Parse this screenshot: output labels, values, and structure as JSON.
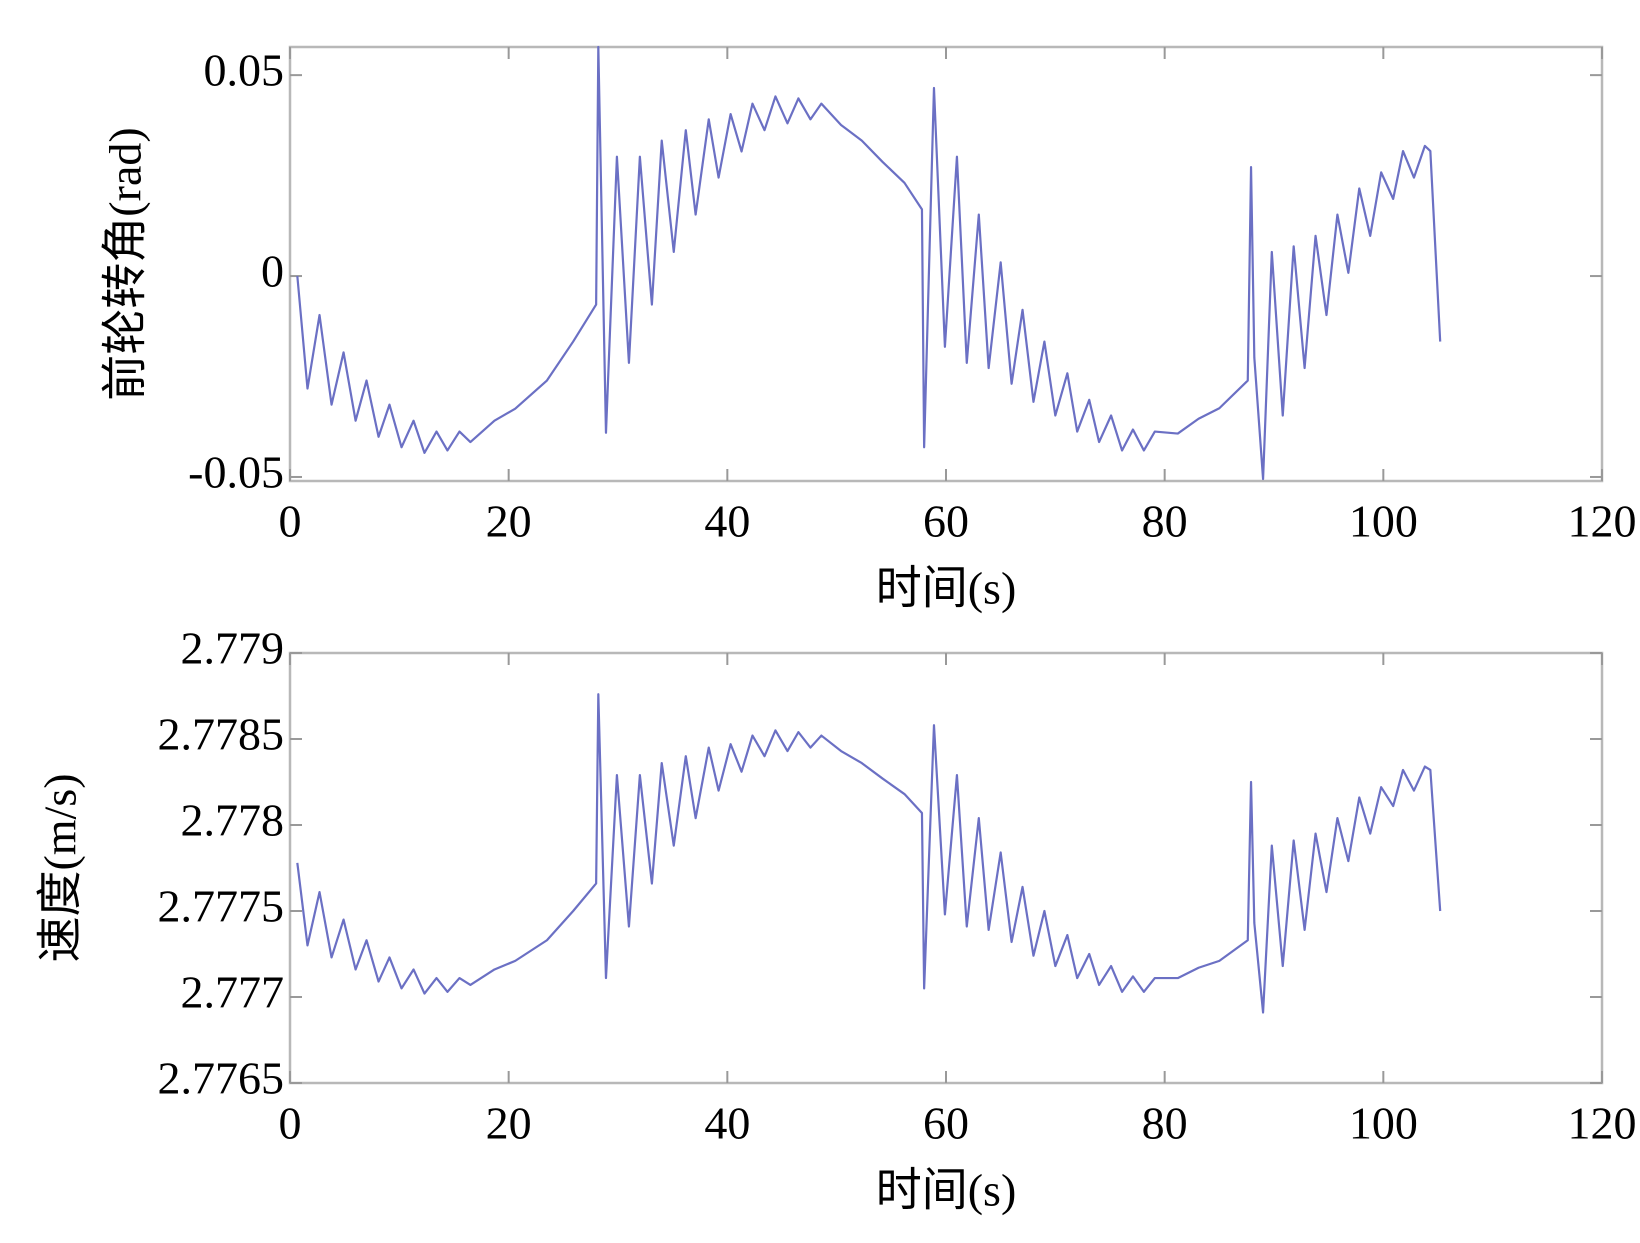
{
  "chart_data": [
    {
      "type": "line",
      "xlabel": "时间(s)",
      "ylabel": "前轮转角(rad)",
      "xlim": [
        0,
        120
      ],
      "xticks": [
        0,
        20,
        40,
        60,
        80,
        100,
        120
      ],
      "ylim": [
        -0.051,
        0.057
      ],
      "yticks": [
        -0.05,
        0,
        0.05
      ],
      "x": [
        0.67,
        1.6,
        2.7,
        3.8,
        4.9,
        6.0,
        7.0,
        8.1,
        9.1,
        10.2,
        11.3,
        12.3,
        13.4,
        14.4,
        15.5,
        16.5,
        18.7,
        20.6,
        23.5,
        25.9,
        28.0,
        28.2,
        28.9,
        29.9,
        31.0,
        32.0,
        33.1,
        34.0,
        35.1,
        36.2,
        37.1,
        38.3,
        39.2,
        40.3,
        41.3,
        42.3,
        43.4,
        44.4,
        45.5,
        46.5,
        47.6,
        48.6,
        50.4,
        52.3,
        54.2,
        56.2,
        57.8,
        58.0,
        58.9,
        59.9,
        61.0,
        61.9,
        63.0,
        63.9,
        65.0,
        66.0,
        67.0,
        68.0,
        69.0,
        70.0,
        71.1,
        72.0,
        73.1,
        74.0,
        75.1,
        76.1,
        77.1,
        78.1,
        79.1,
        81.2,
        83.1,
        85.0,
        87.6,
        87.9,
        88.2,
        89.0,
        89.8,
        90.8,
        91.8,
        92.8,
        93.8,
        94.8,
        95.8,
        96.8,
        97.8,
        98.8,
        99.8,
        100.9,
        101.8,
        102.8,
        103.8,
        104.3,
        105.2
      ],
      "series": [
        {
          "color": "#6b70c4",
          "values": [
            0,
            -0.028,
            -0.0097,
            -0.032,
            -0.019,
            -0.036,
            -0.026,
            -0.04,
            -0.032,
            -0.0426,
            -0.036,
            -0.044,
            -0.0387,
            -0.0434,
            -0.0387,
            -0.0413,
            -0.036,
            -0.033,
            -0.026,
            -0.0163,
            -0.0071,
            0.057,
            -0.039,
            0.0297,
            -0.0216,
            0.0297,
            -0.0071,
            0.0337,
            0.006,
            0.0363,
            0.0153,
            0.039,
            0.0245,
            0.0403,
            0.031,
            0.0429,
            0.0363,
            0.0447,
            0.038,
            0.0442,
            0.039,
            0.0429,
            0.0376,
            0.0337,
            0.0284,
            0.0232,
            0.0166,
            -0.0426,
            0.0468,
            -0.0176,
            0.0297,
            -0.0216,
            0.0153,
            -0.0229,
            0.0034,
            -0.0268,
            -0.0084,
            -0.0313,
            -0.0163,
            -0.0347,
            -0.0242,
            -0.0387,
            -0.0308,
            -0.0413,
            -0.0347,
            -0.0434,
            -0.0382,
            -0.0434,
            -0.0387,
            -0.0392,
            -0.0355,
            -0.0329,
            -0.026,
            0.0271,
            -0.0203,
            -0.0505,
            0.006,
            -0.0347,
            0.0074,
            -0.0229,
            0.01,
            -0.0097,
            0.0153,
            0.0008,
            0.0218,
            0.01,
            0.0258,
            0.0192,
            0.0311,
            0.0245,
            0.0324,
            0.0311,
            -0.0163
          ]
        }
      ]
    },
    {
      "type": "line",
      "xlabel": "时间(s)",
      "ylabel": "速度(m/s)",
      "xlim": [
        0,
        120
      ],
      "xticks": [
        0,
        20,
        40,
        60,
        80,
        100,
        120
      ],
      "ylim": [
        2.7765,
        2.779
      ],
      "yticks": [
        2.7765,
        2.777,
        2.7775,
        2.778,
        2.7785,
        2.779
      ],
      "x": [
        0.67,
        1.6,
        2.7,
        3.8,
        4.9,
        6.0,
        7.0,
        8.1,
        9.1,
        10.2,
        11.3,
        12.3,
        13.4,
        14.4,
        15.5,
        16.5,
        18.7,
        20.6,
        23.5,
        25.9,
        28.0,
        28.2,
        28.9,
        29.9,
        31.0,
        32.0,
        33.1,
        34.0,
        35.1,
        36.2,
        37.1,
        38.3,
        39.2,
        40.3,
        41.3,
        42.3,
        43.4,
        44.4,
        45.5,
        46.5,
        47.6,
        48.6,
        50.4,
        52.3,
        54.2,
        56.2,
        57.8,
        58.0,
        58.9,
        59.9,
        61.0,
        61.9,
        63.0,
        63.9,
        65.0,
        66.0,
        67.0,
        68.0,
        69.0,
        70.0,
        71.1,
        72.0,
        73.1,
        74.0,
        75.1,
        76.1,
        77.1,
        78.1,
        79.1,
        81.2,
        83.1,
        85.0,
        87.6,
        87.9,
        88.2,
        89.0,
        89.8,
        90.8,
        91.8,
        92.8,
        93.8,
        94.8,
        95.8,
        96.8,
        97.8,
        98.8,
        99.8,
        100.9,
        101.8,
        102.8,
        103.8,
        104.3,
        105.2
      ],
      "series": [
        {
          "color": "#6b70c4",
          "values": [
            2.77778,
            2.7773,
            2.77761,
            2.77723,
            2.77745,
            2.77716,
            2.77733,
            2.77709,
            2.77723,
            2.77705,
            2.77716,
            2.77702,
            2.77711,
            2.77703,
            2.77711,
            2.77707,
            2.77716,
            2.77721,
            2.77733,
            2.7775,
            2.77766,
            2.77876,
            2.77711,
            2.77829,
            2.77741,
            2.77829,
            2.77766,
            2.77836,
            2.77788,
            2.7784,
            2.77804,
            2.77845,
            2.7782,
            2.77847,
            2.77831,
            2.77852,
            2.7784,
            2.77855,
            2.77843,
            2.77854,
            2.77845,
            2.77852,
            2.77843,
            2.77836,
            2.77827,
            2.77818,
            2.77807,
            2.77705,
            2.77858,
            2.77748,
            2.77829,
            2.77741,
            2.77804,
            2.77739,
            2.77784,
            2.77732,
            2.77764,
            2.77724,
            2.7775,
            2.77718,
            2.77736,
            2.77711,
            2.77725,
            2.77707,
            2.77718,
            2.77703,
            2.77712,
            2.77703,
            2.77711,
            2.77711,
            2.77717,
            2.77721,
            2.77733,
            2.77825,
            2.77743,
            2.77691,
            2.77788,
            2.77718,
            2.77791,
            2.77739,
            2.77795,
            2.77761,
            2.77804,
            2.77779,
            2.77816,
            2.77795,
            2.77822,
            2.77811,
            2.77832,
            2.7782,
            2.77834,
            2.77832,
            2.7775
          ]
        }
      ]
    }
  ]
}
